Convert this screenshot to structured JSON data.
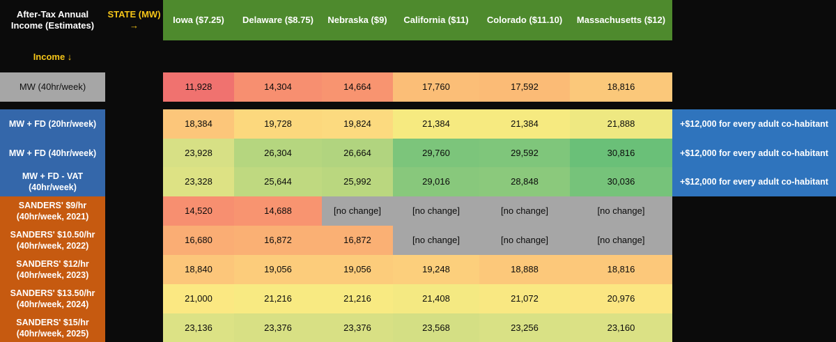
{
  "corner_title": "After-Tax Annual Income (Estimates)",
  "state_label": "STATE (MW) →",
  "income_label": "Income ↓",
  "states": [
    "Iowa ($7.25)",
    "Delaware ($8.75)",
    "Nebraska ($9)",
    "California ($11)",
    "Colorado ($11.10)",
    "Massachusetts ($12)"
  ],
  "rows": [
    {
      "label": "MW (40hr/week)",
      "values": [
        "11,928",
        "14,304",
        "14,664",
        "17,760",
        "17,592",
        "18,816"
      ],
      "colors": [
        "#f0726f",
        "#f78f70",
        "#f89470",
        "#fbbe77",
        "#fbbb76",
        "#fbc87a"
      ],
      "note": ""
    },
    {
      "label": "MW + FD (20hr/week)",
      "values": [
        "18,384",
        "19,728",
        "19,824",
        "21,384",
        "21,384",
        "21,888"
      ],
      "colors": [
        "#fcc67a",
        "#fcd87d",
        "#fcda7f",
        "#f6ea80",
        "#f6ea80",
        "#eee881"
      ],
      "note": "+$12,000 for every adult co-habitant"
    },
    {
      "label": "MW + FD (40hr/week)",
      "values": [
        "23,928",
        "26,304",
        "26,664",
        "29,760",
        "29,592",
        "30,816"
      ],
      "colors": [
        "#d7e085",
        "#b5d67f",
        "#b1d47f",
        "#7cc57b",
        "#7fc67b",
        "#6ac078"
      ],
      "note": "+$12,000 for every adult co-habitant"
    },
    {
      "label": "MW + FD - VAT (40hr/week)",
      "values": [
        "23,328",
        "25,644",
        "25,992",
        "29,016",
        "28,848",
        "30,036"
      ],
      "colors": [
        "#dde284",
        "#bfd980",
        "#bad77f",
        "#88c87c",
        "#8bc97c",
        "#76c37a"
      ],
      "note": "+$12,000 for every adult co-habitant"
    },
    {
      "label": "SANDERS' $9/hr (40hr/week, 2021)",
      "values": [
        "14,520",
        "14,688",
        "[no change]",
        "[no change]",
        "[no change]",
        "[no change]"
      ],
      "colors": [
        "#f78f70",
        "#f89470",
        "#a6a6a6",
        "#a6a6a6",
        "#a6a6a6",
        "#a6a6a6"
      ],
      "note": ""
    },
    {
      "label": "SANDERS' $10.50/hr (40hr/week, 2022)",
      "values": [
        "16,680",
        "16,872",
        "16,872",
        "[no change]",
        "[no change]",
        "[no change]"
      ],
      "colors": [
        "#faad74",
        "#fab074",
        "#fab074",
        "#a6a6a6",
        "#a6a6a6",
        "#a6a6a6"
      ],
      "note": ""
    },
    {
      "label": "SANDERS' $12/hr (40hr/week, 2023)",
      "values": [
        "18,840",
        "19,056",
        "19,056",
        "19,248",
        "18,888",
        "18,816"
      ],
      "colors": [
        "#fcc67a",
        "#fccc7b",
        "#fccc7b",
        "#fccf7c",
        "#fcc87a",
        "#fcc87a"
      ],
      "note": ""
    },
    {
      "label": "SANDERS' $13.50/hr (40hr/week, 2024)",
      "values": [
        "21,000",
        "21,216",
        "21,216",
        "21,408",
        "21,072",
        "20,976"
      ],
      "colors": [
        "#fbe882",
        "#f8ea82",
        "#f8ea82",
        "#f4e982",
        "#f9e882",
        "#fbe682"
      ],
      "note": ""
    },
    {
      "label": "SANDERS' $15/hr (40hr/week, 2025)",
      "values": [
        "23,136",
        "23,376",
        "23,376",
        "23,568",
        "23,256",
        "23,160"
      ],
      "colors": [
        "#dce285",
        "#d8e084",
        "#d8e084",
        "#d4df84",
        "#d9e185",
        "#dbe185"
      ],
      "note": ""
    }
  ],
  "colors": {
    "header_green": "#4e8a2d",
    "label_gray": "#a6a6a6",
    "label_blue": "#3467aa",
    "label_orange": "#c65a10",
    "note_blue": "#2f74bd",
    "background": "#0b0b0b",
    "gold": "#f5c518"
  }
}
